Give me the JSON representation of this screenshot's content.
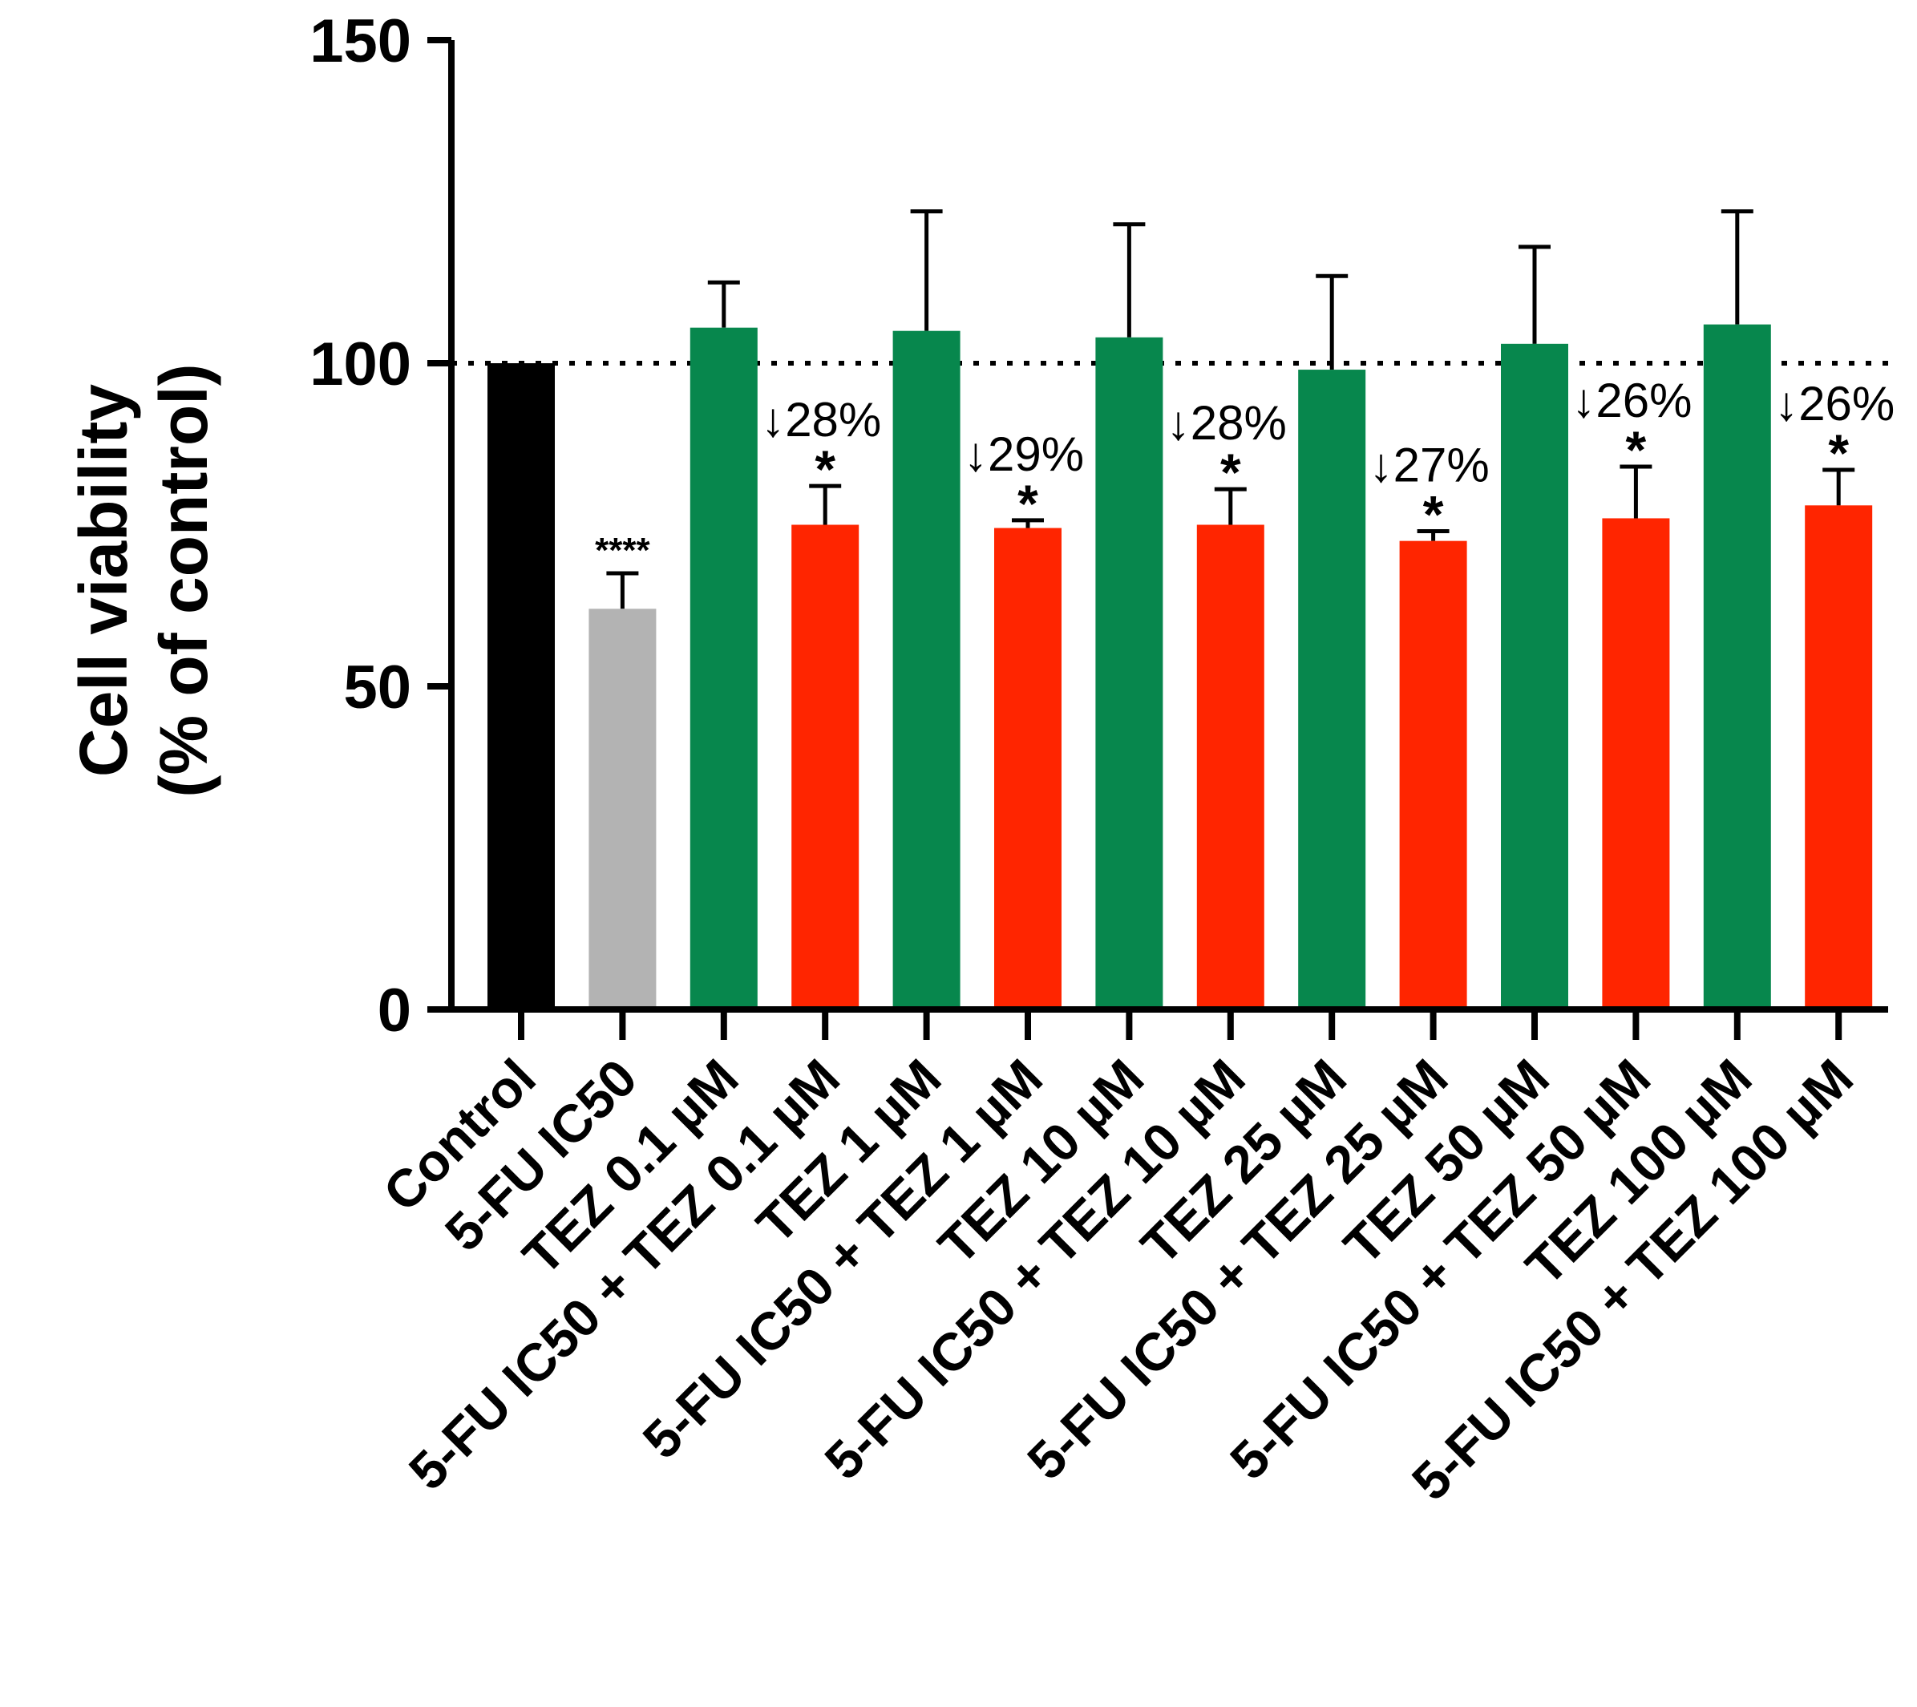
{
  "chart_data": {
    "type": "bar",
    "title": "",
    "xlabel": "",
    "ylabel": [
      "Cell viability",
      "(% of control)"
    ],
    "ylim": [
      0,
      150
    ],
    "yticks": [
      "0",
      "50",
      "100",
      "150"
    ],
    "reference_line": 100,
    "grid": false,
    "colors": {
      "control": "#000000",
      "fu": "#b3b3b3",
      "tez": "#07874d",
      "combo": "#ff2500",
      "axis": "#000000"
    },
    "categories": [
      "Control",
      "5-FU IC50",
      "TEZ 0.1 µM",
      "5-FU IC50 + TEZ 0.1 µM",
      "TEZ 1 µM",
      "5-FU IC50 + TEZ 1 µM",
      "TEZ 10 µM",
      "5-FU IC50 + TEZ 10 µM",
      "TEZ 25 µM",
      "5-FU IC50 + TEZ 25 µM",
      "TEZ 50 µM",
      "5-FU IC50 + TEZ 50 µM",
      "TEZ 100 µM",
      "5-FU IC50 + TEZ 100 µM"
    ],
    "values": [
      100,
      62,
      105.5,
      75,
      105,
      74.5,
      104,
      75,
      99,
      72.5,
      103,
      76,
      106,
      78
    ],
    "errors": [
      0,
      5.5,
      7,
      6,
      18.5,
      1.2,
      17.5,
      5.5,
      14.5,
      1.5,
      15,
      8,
      17.5,
      5.5
    ],
    "bar_color_keys": [
      "control",
      "fu",
      "tez",
      "combo",
      "tez",
      "combo",
      "tez",
      "combo",
      "tez",
      "combo",
      "tez",
      "combo",
      "tez",
      "combo"
    ],
    "significance": [
      "",
      "****",
      "",
      "*",
      "",
      "*",
      "",
      "*",
      "",
      "*",
      "",
      "*",
      "",
      "*"
    ],
    "annotations": [
      "",
      "",
      "",
      "↓28%",
      "",
      "↓29%",
      "",
      "↓28%",
      "",
      "↓27%",
      "",
      "↓26%",
      "",
      "↓26%"
    ]
  }
}
